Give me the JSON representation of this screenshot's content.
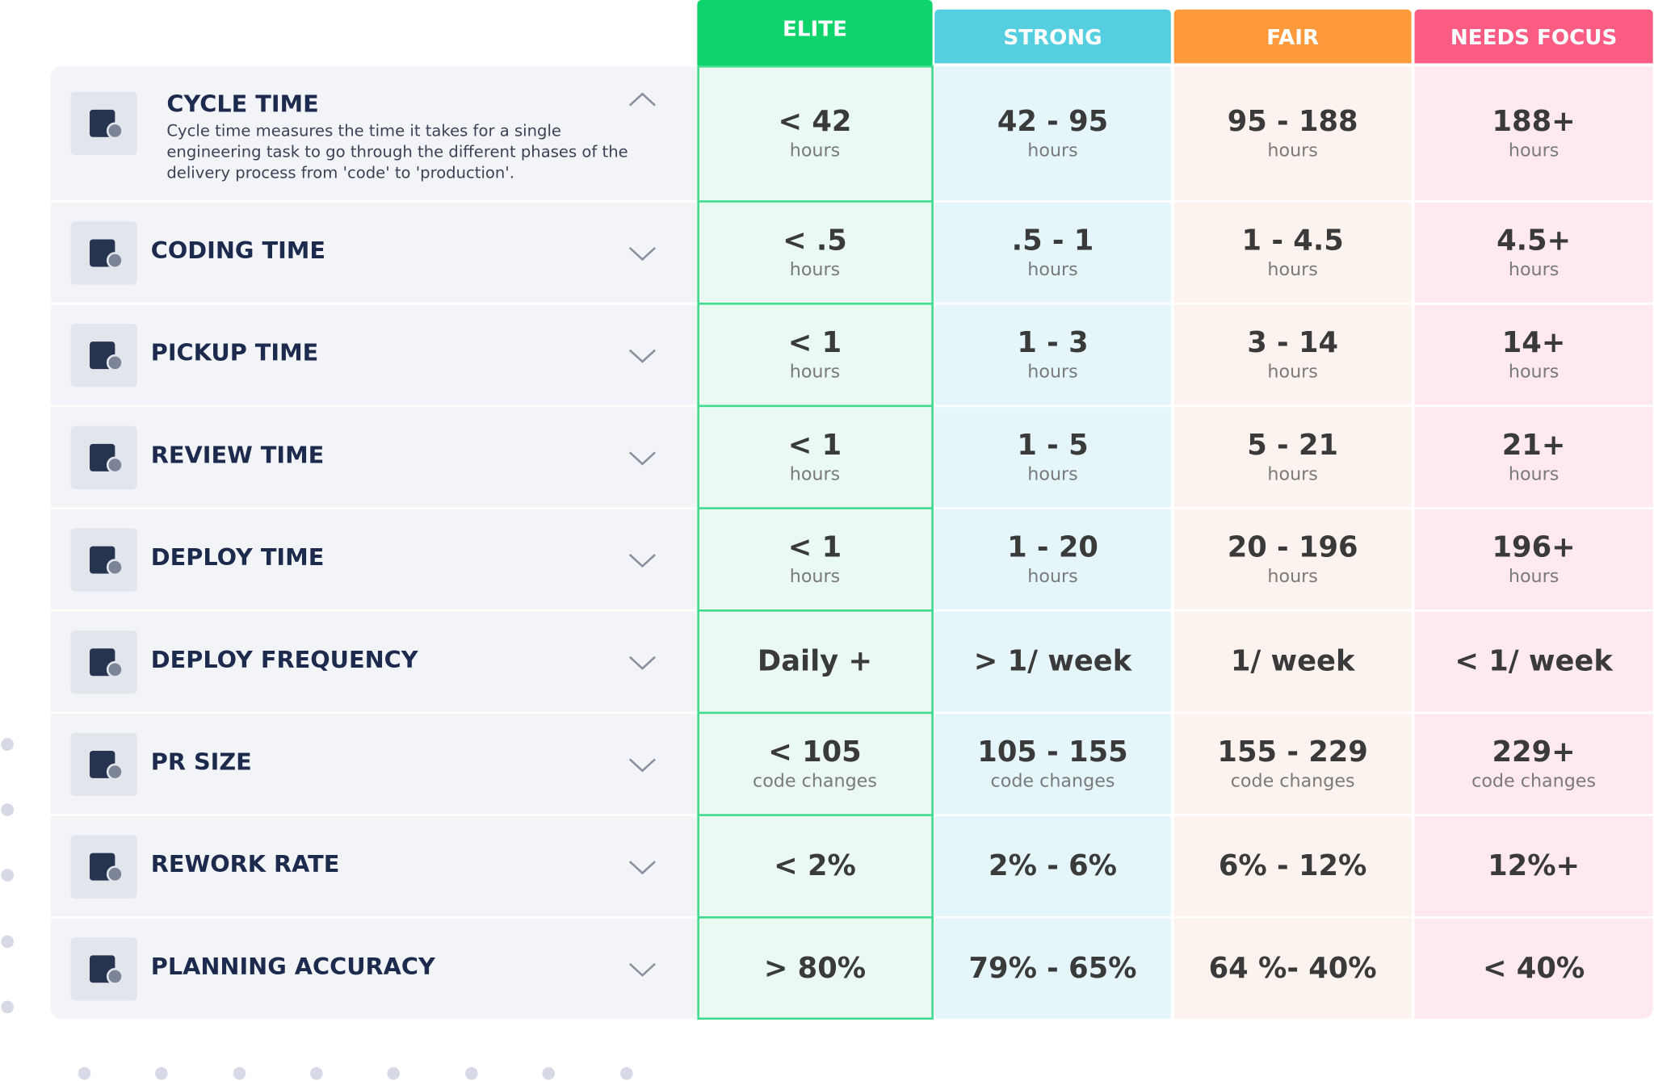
{
  "header": {
    "columns": [
      "ELITE",
      "STRONG",
      "FAIR",
      "NEEDS FOCUS"
    ]
  },
  "rows": [
    {
      "metric": "CYCLE TIME",
      "description": "Cycle time measures the time it takes for a single engineering task to go through the different phases of the delivery process from 'code' to 'production'.",
      "cells": [
        {
          "value": "< 42",
          "unit": "hours"
        },
        {
          "value": "42 - 95",
          "unit": "hours"
        },
        {
          "value": "95 - 188",
          "unit": "hours"
        },
        {
          "value": "188+",
          "unit": "hours"
        }
      ]
    },
    {
      "metric": "CODING TIME",
      "cells": [
        {
          "value": "< .5",
          "unit": "hours"
        },
        {
          "value": ".5 - 1",
          "unit": "hours"
        },
        {
          "value": "1 - 4.5",
          "unit": "hours"
        },
        {
          "value": "4.5+",
          "unit": "hours"
        }
      ]
    },
    {
      "metric": "PICKUP TIME",
      "cells": [
        {
          "value": "< 1",
          "unit": "hours"
        },
        {
          "value": "1 - 3",
          "unit": "hours"
        },
        {
          "value": "3 - 14",
          "unit": "hours"
        },
        {
          "value": "14+",
          "unit": "hours"
        }
      ]
    },
    {
      "metric": "REVIEW TIME",
      "cells": [
        {
          "value": "< 1",
          "unit": "hours"
        },
        {
          "value": "1 - 5",
          "unit": "hours"
        },
        {
          "value": "5 - 21",
          "unit": "hours"
        },
        {
          "value": "21+",
          "unit": "hours"
        }
      ]
    },
    {
      "metric": "DEPLOY TIME",
      "cells": [
        {
          "value": "< 1",
          "unit": "hours"
        },
        {
          "value": "1 - 20",
          "unit": "hours"
        },
        {
          "value": "20 - 196",
          "unit": "hours"
        },
        {
          "value": "196+",
          "unit": "hours"
        }
      ]
    },
    {
      "metric": "DEPLOY FREQUENCY",
      "cells": [
        {
          "value": "Daily +"
        },
        {
          "value": "> 1/ week"
        },
        {
          "value": "1/ week"
        },
        {
          "value": "< 1/ week"
        }
      ]
    },
    {
      "metric": "PR SIZE",
      "cells": [
        {
          "value": "< 105",
          "unit": "code changes"
        },
        {
          "value": "105 - 155",
          "unit": "code changes"
        },
        {
          "value": "155 - 229",
          "unit": "code changes"
        },
        {
          "value": "229+",
          "unit": "code changes"
        }
      ]
    },
    {
      "metric": "REWORK RATE",
      "cells": [
        {
          "value": "< 2%"
        },
        {
          "value": "2% - 6%"
        },
        {
          "value": "6% - 12%"
        },
        {
          "value": "12%+"
        }
      ]
    },
    {
      "metric": "PLANNING ACCURACY",
      "cells": [
        {
          "value": "> 80%"
        },
        {
          "value": "79% - 65%"
        },
        {
          "value": "64 %- 40%"
        },
        {
          "value": "< 40%"
        }
      ]
    }
  ]
}
